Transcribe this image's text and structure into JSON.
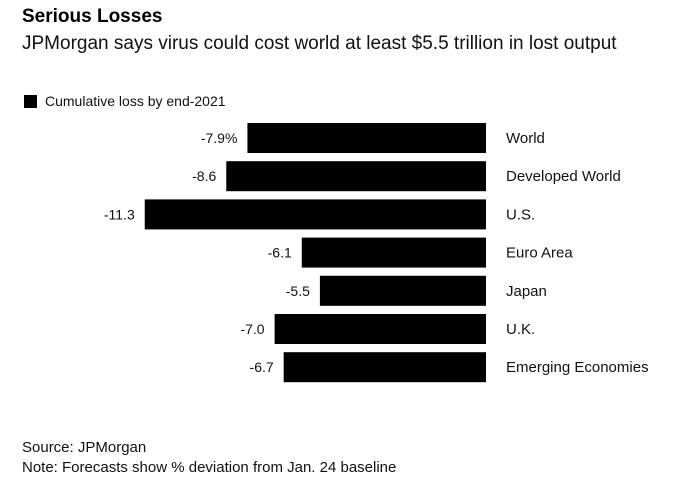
{
  "title": "Serious Losses",
  "subtitle": "JPMorgan says virus could cost world at least $5.5 trillion in lost output",
  "legend": {
    "label": "Cumulative loss by end-2021",
    "color": "#000000"
  },
  "footer": {
    "source": "Source: JPMorgan",
    "note": "Note: Forecasts show % deviation from Jan. 24 baseline"
  },
  "chart_data": {
    "type": "bar",
    "orientation": "horizontal",
    "title": "Serious Losses",
    "subtitle": "JPMorgan says virus could cost world at least $5.5 trillion in lost output",
    "xlabel": "",
    "ylabel": "",
    "unit": "%",
    "categories": [
      "World",
      "Developed World",
      "U.S.",
      "Euro Area",
      "Japan",
      "U.K.",
      "Emerging Economies"
    ],
    "series": [
      {
        "name": "Cumulative loss by end-2021",
        "color": "#000000",
        "values": [
          -7.9,
          -8.6,
          -11.3,
          -6.1,
          -5.5,
          -7.0,
          -6.7
        ]
      }
    ],
    "value_labels": [
      "-7.9%",
      "-8.6",
      "-11.3",
      "-6.1",
      "-5.5",
      "-7.0",
      "-6.7"
    ],
    "xlim": [
      -11.3,
      0
    ],
    "grid": false,
    "legend_position": "top-left"
  }
}
